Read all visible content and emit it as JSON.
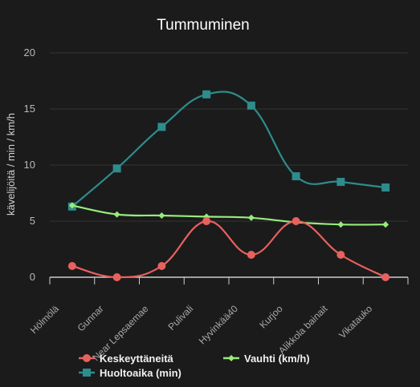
{
  "chart_data": {
    "type": "line",
    "title": "Tummuminen",
    "xlabel": "",
    "ylabel": "kävelijöitä / min / km/h",
    "ylim": [
      0,
      20
    ],
    "yticks": [
      0,
      5,
      10,
      15,
      20
    ],
    "grid": true,
    "legend_position": "bottom",
    "categories": [
      "Hölmölä",
      "Gunnar",
      "Near Lepsaemae",
      "Pulivali",
      "Hyvinkää40",
      "Kurjoo",
      "Alikkola bainait",
      "Vikatauko"
    ],
    "series": [
      {
        "name": "Keskeyttäneitä",
        "color": "#e8615d",
        "marker": "circle",
        "values": [
          1,
          0,
          1,
          5,
          2,
          5,
          2,
          0
        ]
      },
      {
        "name": "Huoltoaika (min)",
        "color": "#2e8c8c",
        "marker": "square",
        "values": [
          6.3,
          9.7,
          13.4,
          16.3,
          15.3,
          9.0,
          8.5,
          8.0
        ]
      },
      {
        "name": "Vauhti (km/h)",
        "color": "#97ec7b",
        "marker": "diamond",
        "values": [
          6.4,
          5.6,
          5.5,
          5.4,
          5.3,
          4.9,
          4.7,
          4.7
        ]
      }
    ]
  }
}
